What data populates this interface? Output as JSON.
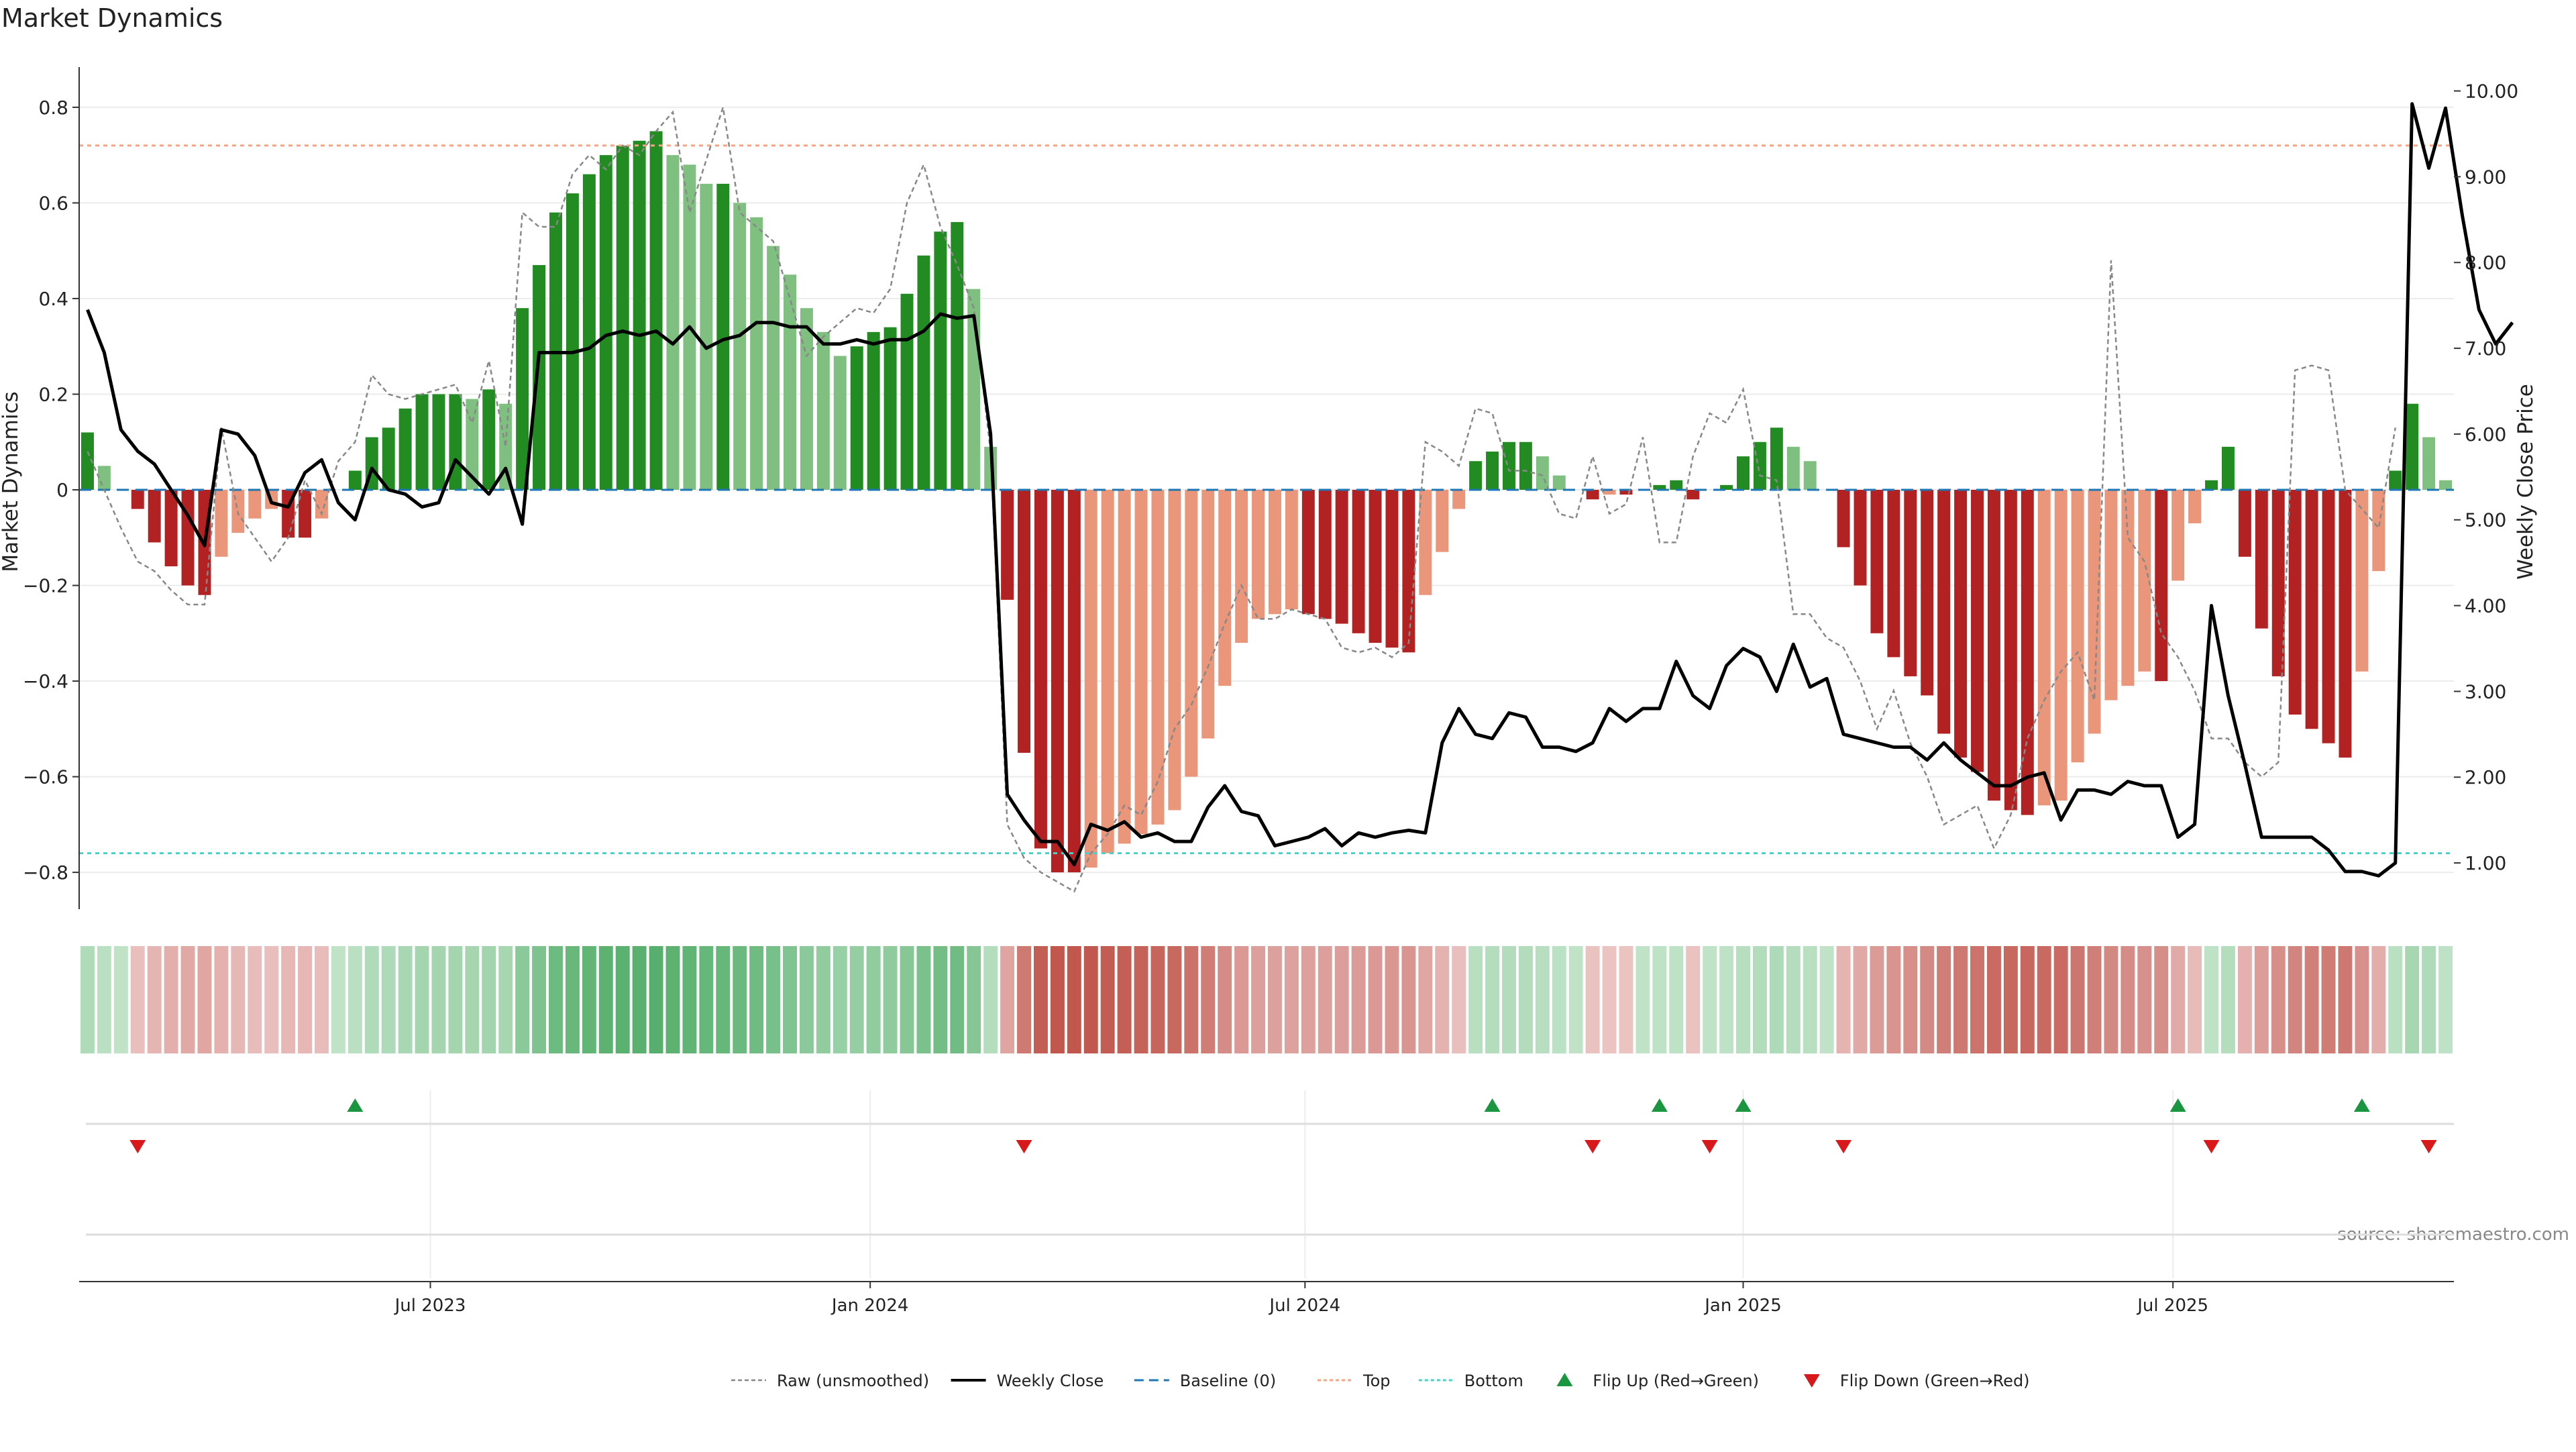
{
  "chart_data": {
    "type": "bar",
    "title": "Market Dynamics",
    "source": "source: sharemaestro.com",
    "ylabel_left": "Market Dynamics",
    "ylabel_right": "Weekly Close Price",
    "left_axis": {
      "min": -0.87,
      "max": 0.87,
      "ticks": [
        0.8,
        0.6,
        0.4,
        0.2,
        0,
        -0.2,
        -0.4,
        -0.6,
        -0.8
      ],
      "tick_labels": [
        "0.8",
        "0.6",
        "0.4",
        "0.2",
        "0",
        "−0.2",
        "−0.4",
        "−0.6",
        "−0.8"
      ]
    },
    "right_axis": {
      "min": 0.5,
      "max": 10.2,
      "ticks": [
        10,
        9,
        8,
        7,
        6,
        5,
        4,
        3,
        2,
        1
      ],
      "tick_labels": [
        "10.00",
        "9.00",
        "8.00",
        "7.00",
        "6.00",
        "5.00",
        "4.00",
        "3.00",
        "2.00",
        "1.00"
      ]
    },
    "x_ticks": [
      {
        "label": "Jul 2023",
        "index": 21
      },
      {
        "label": "Jan 2024",
        "index": 47.3
      },
      {
        "label": "Jul 2024",
        "index": 73.3
      },
      {
        "label": "Jan 2025",
        "index": 99.5
      },
      {
        "label": "Jul 2025",
        "index": 125.2
      }
    ],
    "top_line": 0.72,
    "bottom_line": -0.76,
    "colors": {
      "dark_green": "#228b22",
      "light_green": "#7fbf7f",
      "dark_red": "#b22222",
      "light_red": "#e9967a",
      "top": "#f4a582",
      "bottom": "#48d1cc",
      "baseline": "#1f77b4",
      "close": "#000000",
      "raw": "#888888",
      "marker_up": "#1a9641",
      "marker_down": "#d7191c"
    },
    "series": [
      {
        "name": "Market Dynamics",
        "values": [
          0.12,
          0.05,
          0,
          -0.04,
          -0.11,
          -0.16,
          -0.2,
          -0.22,
          -0.14,
          -0.09,
          -0.06,
          -0.04,
          -0.1,
          -0.1,
          -0.06,
          0,
          0.04,
          0.11,
          0.13,
          0.17,
          0.2,
          0.2,
          0.2,
          0.19,
          0.21,
          0.18,
          0.38,
          0.47,
          0.58,
          0.62,
          0.66,
          0.7,
          0.72,
          0.73,
          0.75,
          0.7,
          0.68,
          0.64,
          0.64,
          0.6,
          0.57,
          0.51,
          0.45,
          0.38,
          0.33,
          0.28,
          0.3,
          0.33,
          0.34,
          0.41,
          0.49,
          0.54,
          0.56,
          0.42,
          0.09,
          -0.23,
          -0.55,
          -0.75,
          -0.8,
          -0.8,
          -0.79,
          -0.76,
          -0.74,
          -0.72,
          -0.7,
          -0.67,
          -0.6,
          -0.52,
          -0.41,
          -0.32,
          -0.27,
          -0.26,
          -0.25,
          -0.26,
          -0.27,
          -0.28,
          -0.3,
          -0.32,
          -0.33,
          -0.34,
          -0.22,
          -0.13,
          -0.04,
          0.06,
          0.08,
          0.1,
          0.1,
          0.07,
          0.03,
          0,
          -0.02,
          -0.01,
          -0.01,
          0,
          0.01,
          0.02,
          -0.02,
          0,
          0.01,
          0.07,
          0.1,
          0.13,
          0.09,
          0.06,
          0,
          -0.12,
          -0.2,
          -0.3,
          -0.35,
          -0.39,
          -0.43,
          -0.51,
          -0.56,
          -0.59,
          -0.65,
          -0.67,
          -0.68,
          -0.66,
          -0.65,
          -0.57,
          -0.51,
          -0.44,
          -0.41,
          -0.38,
          -0.4,
          -0.19,
          -0.07,
          0.02,
          0.09,
          -0.14,
          -0.29,
          -0.39,
          -0.47,
          -0.5,
          -0.53,
          -0.56,
          -0.38,
          -0.17,
          0.04,
          0.18,
          0.11,
          0.02
        ]
      },
      {
        "name": "Raw (unsmoothed)",
        "values": [
          0.08,
          0,
          -0.08,
          -0.15,
          -0.17,
          -0.21,
          -0.24,
          -0.24,
          0.13,
          -0.05,
          -0.1,
          -0.15,
          -0.1,
          0.02,
          -0.05,
          0.06,
          0.1,
          0.24,
          0.2,
          0.19,
          0.2,
          0.21,
          0.22,
          0.14,
          0.27,
          0.09,
          0.58,
          0.55,
          0.55,
          0.66,
          0.7,
          0.67,
          0.72,
          0.7,
          0.75,
          0.79,
          0.58,
          0.69,
          0.8,
          0.58,
          0.55,
          0.52,
          0.4,
          0.28,
          0.32,
          0.35,
          0.38,
          0.37,
          0.42,
          0.6,
          0.68,
          0.55,
          0.47,
          0.38,
          0.08,
          -0.7,
          -0.77,
          -0.8,
          -0.82,
          -0.84,
          -0.76,
          -0.72,
          -0.66,
          -0.68,
          -0.61,
          -0.5,
          -0.45,
          -0.37,
          -0.28,
          -0.2,
          -0.27,
          -0.27,
          -0.25,
          -0.26,
          -0.27,
          -0.33,
          -0.34,
          -0.33,
          -0.35,
          -0.32,
          0.1,
          0.08,
          0.05,
          0.17,
          0.16,
          0.04,
          0.04,
          0.03,
          -0.05,
          -0.06,
          0.07,
          -0.05,
          -0.03,
          0.11,
          -0.11,
          -0.11,
          0.07,
          0.16,
          0.14,
          0.21,
          0.03,
          0.02,
          -0.26,
          -0.26,
          -0.31,
          -0.33,
          -0.4,
          -0.5,
          -0.42,
          -0.53,
          -0.6,
          -0.7,
          -0.68,
          -0.66,
          -0.75,
          -0.68,
          -0.52,
          -0.44,
          -0.38,
          -0.34,
          -0.44,
          0.48,
          -0.1,
          -0.15,
          -0.3,
          -0.35,
          -0.42,
          -0.52,
          -0.52,
          -0.57,
          -0.6,
          -0.57,
          0.25,
          0.26,
          0.25,
          0,
          -0.04,
          -0.08,
          0.13
        ]
      },
      {
        "name": "Weekly Close",
        "values": [
          7.45,
          6.95,
          6.05,
          5.8,
          5.65,
          5.35,
          5.05,
          4.7,
          6.05,
          6.0,
          5.75,
          5.2,
          5.15,
          5.55,
          5.7,
          5.2,
          5.0,
          5.6,
          5.35,
          5.3,
          5.15,
          5.2,
          5.7,
          5.5,
          5.3,
          5.6,
          4.95,
          6.95,
          6.95,
          6.95,
          7.0,
          7.15,
          7.2,
          7.15,
          7.2,
          7.05,
          7.25,
          7.0,
          7.1,
          7.15,
          7.3,
          7.3,
          7.25,
          7.25,
          7.05,
          7.05,
          7.1,
          7.05,
          7.1,
          7.1,
          7.2,
          7.4,
          7.35,
          7.38,
          6.0,
          1.8,
          1.5,
          1.25,
          1.25,
          0.98,
          1.45,
          1.38,
          1.48,
          1.3,
          1.35,
          1.25,
          1.25,
          1.65,
          1.9,
          1.6,
          1.55,
          1.2,
          1.25,
          1.3,
          1.4,
          1.2,
          1.35,
          1.3,
          1.35,
          1.38,
          1.35,
          2.4,
          2.8,
          2.5,
          2.45,
          2.75,
          2.7,
          2.35,
          2.35,
          2.3,
          2.4,
          2.8,
          2.65,
          2.8,
          2.8,
          3.35,
          2.95,
          2.8,
          3.3,
          3.5,
          3.4,
          3.0,
          3.55,
          3.05,
          3.15,
          2.5,
          2.45,
          2.4,
          2.35,
          2.35,
          2.2,
          2.4,
          2.2,
          2.05,
          1.9,
          1.9,
          2.0,
          2.05,
          1.5,
          1.85,
          1.85,
          1.8,
          1.95,
          1.9,
          1.9,
          1.3,
          1.45,
          4.0,
          2.95,
          2.15,
          1.3,
          1.3,
          1.3,
          1.3,
          1.15,
          0.9,
          0.9,
          0.85,
          1.0,
          9.85,
          9.1,
          9.8,
          8.55,
          7.45,
          7.05,
          7.3
        ]
      }
    ],
    "flip_up_indices": [
      16,
      84,
      94,
      99,
      125,
      136
    ],
    "flip_down_indices": [
      3,
      56,
      90,
      97,
      105,
      127,
      140
    ],
    "legend_position": "bottom-center",
    "legend": [
      "Raw (unsmoothed)",
      "Weekly Close",
      "Baseline (0)",
      "Top",
      "Bottom",
      "Flip Up (Red→Green)",
      "Flip Down (Green→Red)"
    ]
  }
}
